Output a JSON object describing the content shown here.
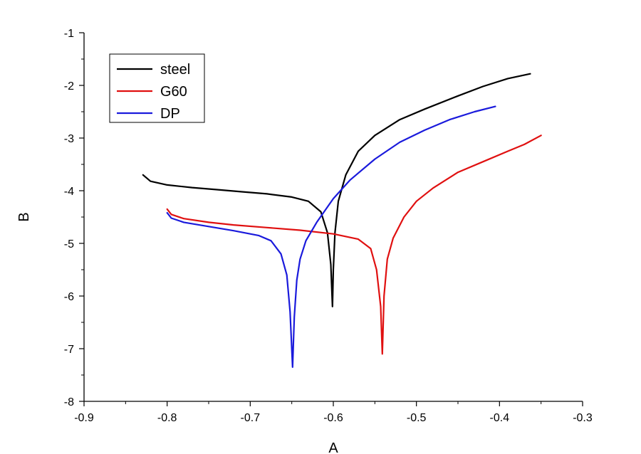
{
  "chart_data": {
    "type": "line",
    "title": "",
    "xlabel": "A",
    "ylabel": "B",
    "xlim": [
      -0.9,
      -0.3
    ],
    "ylim": [
      -8,
      -1
    ],
    "x_ticks": [
      -0.9,
      -0.8,
      -0.7,
      -0.6,
      -0.5,
      -0.4,
      -0.3
    ],
    "y_ticks": [
      -8,
      -7,
      -6,
      -5,
      -4,
      -3,
      -2,
      -1
    ],
    "x_tick_labels": [
      "-0.9",
      "-0.8",
      "-0.7",
      "-0.6",
      "-0.5",
      "-0.4",
      "-0.3"
    ],
    "y_tick_labels": [
      "-8",
      "-7",
      "-6",
      "-5",
      "-4",
      "-3",
      "-2",
      "-1"
    ],
    "grid": false,
    "legend_position": "top-left",
    "series": [
      {
        "name": "steel",
        "color": "#000000",
        "points": [
          [
            -0.829,
            -3.7
          ],
          [
            -0.82,
            -3.82
          ],
          [
            -0.8,
            -3.89
          ],
          [
            -0.77,
            -3.94
          ],
          [
            -0.74,
            -3.98
          ],
          [
            -0.71,
            -4.02
          ],
          [
            -0.68,
            -4.06
          ],
          [
            -0.65,
            -4.12
          ],
          [
            -0.63,
            -4.2
          ],
          [
            -0.615,
            -4.4
          ],
          [
            -0.607,
            -4.8
          ],
          [
            -0.603,
            -5.4
          ],
          [
            -0.601,
            -6.2
          ],
          [
            -0.6,
            -5.5
          ],
          [
            -0.598,
            -4.8
          ],
          [
            -0.594,
            -4.2
          ],
          [
            -0.585,
            -3.7
          ],
          [
            -0.57,
            -3.25
          ],
          [
            -0.55,
            -2.95
          ],
          [
            -0.52,
            -2.65
          ],
          [
            -0.49,
            -2.45
          ],
          [
            -0.45,
            -2.2
          ],
          [
            -0.42,
            -2.02
          ],
          [
            -0.39,
            -1.87
          ],
          [
            -0.363,
            -1.78
          ]
        ]
      },
      {
        "name": "G60",
        "color": "#e01010",
        "points": [
          [
            -0.8,
            -4.35
          ],
          [
            -0.795,
            -4.45
          ],
          [
            -0.78,
            -4.53
          ],
          [
            -0.75,
            -4.6
          ],
          [
            -0.72,
            -4.65
          ],
          [
            -0.68,
            -4.7
          ],
          [
            -0.64,
            -4.75
          ],
          [
            -0.6,
            -4.82
          ],
          [
            -0.57,
            -4.92
          ],
          [
            -0.555,
            -5.1
          ],
          [
            -0.548,
            -5.5
          ],
          [
            -0.543,
            -6.2
          ],
          [
            -0.541,
            -7.1
          ],
          [
            -0.539,
            -6.0
          ],
          [
            -0.535,
            -5.3
          ],
          [
            -0.528,
            -4.9
          ],
          [
            -0.515,
            -4.5
          ],
          [
            -0.5,
            -4.2
          ],
          [
            -0.48,
            -3.95
          ],
          [
            -0.45,
            -3.65
          ],
          [
            -0.42,
            -3.45
          ],
          [
            -0.39,
            -3.25
          ],
          [
            -0.37,
            -3.12
          ],
          [
            -0.35,
            -2.95
          ]
        ]
      },
      {
        "name": "DP",
        "color": "#1a1adc",
        "points": [
          [
            -0.8,
            -4.42
          ],
          [
            -0.795,
            -4.52
          ],
          [
            -0.78,
            -4.6
          ],
          [
            -0.75,
            -4.68
          ],
          [
            -0.72,
            -4.76
          ],
          [
            -0.69,
            -4.85
          ],
          [
            -0.675,
            -4.95
          ],
          [
            -0.663,
            -5.2
          ],
          [
            -0.656,
            -5.6
          ],
          [
            -0.652,
            -6.3
          ],
          [
            -0.649,
            -7.35
          ],
          [
            -0.647,
            -6.4
          ],
          [
            -0.644,
            -5.7
          ],
          [
            -0.64,
            -5.3
          ],
          [
            -0.633,
            -4.95
          ],
          [
            -0.62,
            -4.6
          ],
          [
            -0.6,
            -4.15
          ],
          [
            -0.58,
            -3.8
          ],
          [
            -0.55,
            -3.4
          ],
          [
            -0.52,
            -3.08
          ],
          [
            -0.49,
            -2.85
          ],
          [
            -0.46,
            -2.65
          ],
          [
            -0.43,
            -2.5
          ],
          [
            -0.405,
            -2.4
          ]
        ]
      }
    ]
  }
}
